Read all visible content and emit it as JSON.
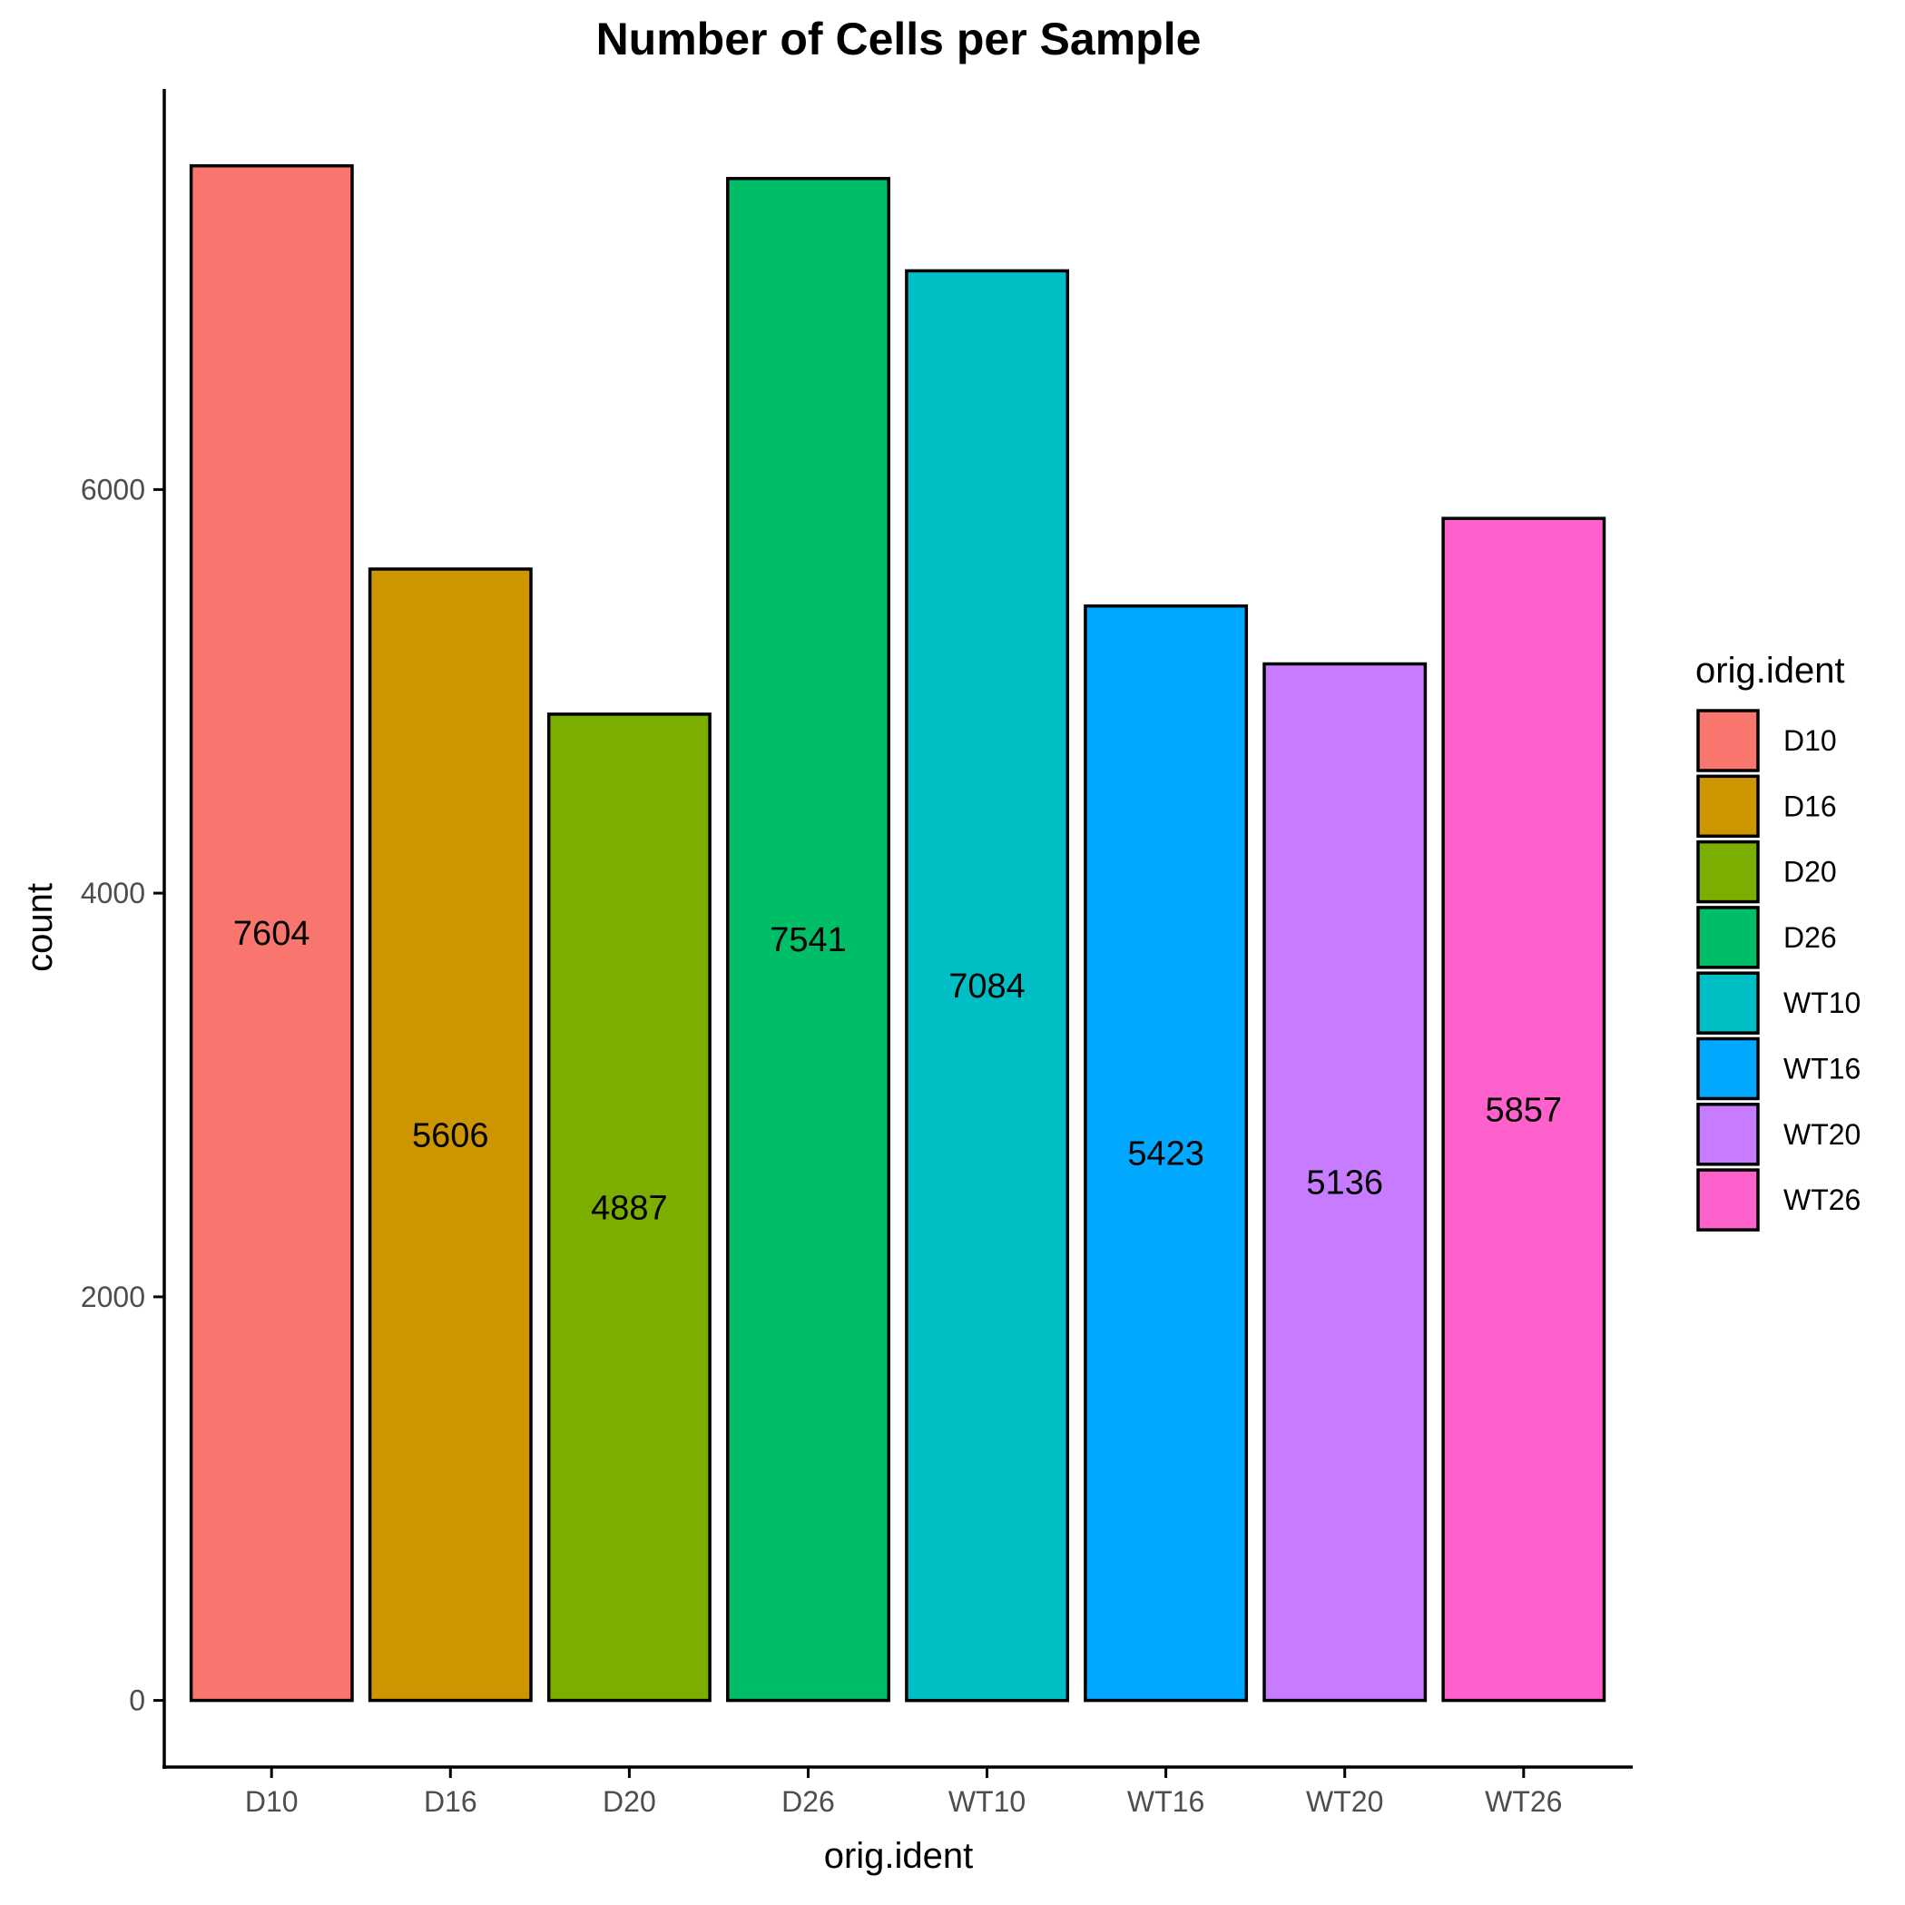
{
  "chart_data": {
    "type": "bar",
    "title": "Number of Cells per Sample",
    "xlabel": "orig.ident",
    "ylabel": "count",
    "categories": [
      "D10",
      "D16",
      "D20",
      "D26",
      "WT10",
      "WT16",
      "WT20",
      "WT26"
    ],
    "values": [
      7604,
      5606,
      4887,
      7541,
      7084,
      5423,
      5136,
      5857
    ],
    "data_labels": [
      "7604",
      "5606",
      "4887",
      "7541",
      "7084",
      "5423",
      "5136",
      "5857"
    ],
    "colors": [
      "#F8766D",
      "#CD9600",
      "#7CAE00",
      "#00BE67",
      "#00BFC4",
      "#00A9FF",
      "#C77CFF",
      "#FF61CC"
    ],
    "yticks": [
      0,
      2000,
      4000,
      6000
    ],
    "ytick_labels": [
      "0",
      "2000",
      "4000",
      "6000"
    ],
    "ylim": [
      -330,
      7985
    ],
    "grid": false,
    "legend": {
      "title": "orig.ident",
      "position": "right",
      "entries": [
        "D10",
        "D16",
        "D20",
        "D26",
        "WT10",
        "WT16",
        "WT20",
        "WT26"
      ]
    }
  }
}
